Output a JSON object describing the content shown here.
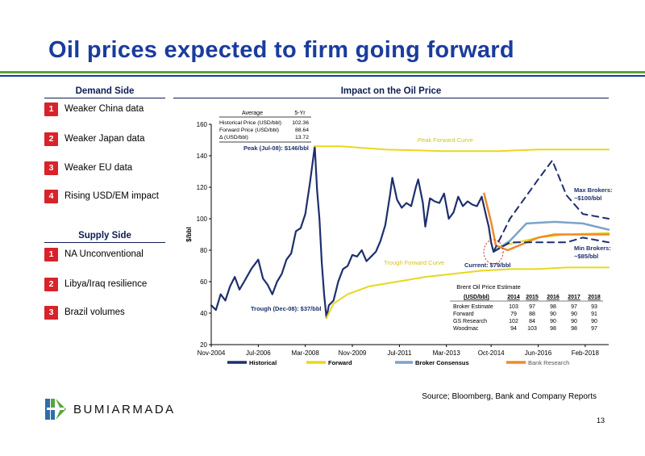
{
  "page": {
    "title": "Oil prices expected to firm going forward",
    "source": "Source; Bloomberg, Bank and Company Reports",
    "page_number": "13",
    "logo_text": "BUMIARMADA"
  },
  "demand": {
    "heading": "Demand Side",
    "items": [
      {
        "num": "1",
        "label": "Weaker China data"
      },
      {
        "num": "2",
        "label": "Weaker Japan data"
      },
      {
        "num": "3",
        "label": "Weaker EU data"
      },
      {
        "num": "4",
        "label": "Rising USD/EM impact"
      }
    ]
  },
  "supply": {
    "heading": "Supply Side",
    "items": [
      {
        "num": "1",
        "label": "NA Unconventional"
      },
      {
        "num": "2",
        "label": "Libya/Iraq resilience"
      },
      {
        "num": "3",
        "label": "Brazil volumes"
      }
    ]
  },
  "colors": {
    "title": "#1a3c9c",
    "historical": "#1d2f6e",
    "forward": "#e8d81e",
    "broker_consensus": "#7ba3c9",
    "bank_research": "#ef8a28",
    "max_min_brokers": "#1d2f6e",
    "badge": "#d8232a",
    "top_rule": "#5aa53c"
  },
  "chart_data": {
    "type": "line",
    "title": "Impact on the Oil Price",
    "ylabel": "$/bbl",
    "ylim": [
      20,
      160
    ],
    "yticks": [
      20,
      40,
      60,
      80,
      100,
      120,
      140,
      160
    ],
    "xlim": [
      "2004-11",
      "2018-12"
    ],
    "x_tick_labels": [
      "Nov-2004",
      "Jul-2006",
      "Mar-2008",
      "Nov-2009",
      "Jul-2011",
      "Mar-2013",
      "Oct-2014",
      "Jun-2016",
      "Feb-2018"
    ],
    "x_tick_dates": [
      "2004-11",
      "2006-07",
      "2008-03",
      "2009-11",
      "2011-07",
      "2013-03",
      "2014-10",
      "2016-06",
      "2018-02"
    ],
    "grid": false,
    "legend_position": "bottom",
    "series": [
      {
        "name": "Historical",
        "points": [
          [
            "2004-11",
            45
          ],
          [
            "2005-01",
            42
          ],
          [
            "2005-03",
            52
          ],
          [
            "2005-05",
            48
          ],
          [
            "2005-07",
            57
          ],
          [
            "2005-09",
            63
          ],
          [
            "2005-11",
            55
          ],
          [
            "2006-01",
            60
          ],
          [
            "2006-04",
            68
          ],
          [
            "2006-07",
            74
          ],
          [
            "2006-09",
            62
          ],
          [
            "2006-11",
            58
          ],
          [
            "2007-01",
            52
          ],
          [
            "2007-03",
            60
          ],
          [
            "2007-05",
            65
          ],
          [
            "2007-07",
            74
          ],
          [
            "2007-09",
            78
          ],
          [
            "2007-11",
            92
          ],
          [
            "2008-01",
            94
          ],
          [
            "2008-03",
            103
          ],
          [
            "2008-05",
            123
          ],
          [
            "2008-07",
            146
          ],
          [
            "2008-08",
            118
          ],
          [
            "2008-09",
            100
          ],
          [
            "2008-10",
            72
          ],
          [
            "2008-11",
            52
          ],
          [
            "2008-12",
            37
          ],
          [
            "2009-01",
            45
          ],
          [
            "2009-03",
            48
          ],
          [
            "2009-05",
            60
          ],
          [
            "2009-07",
            68
          ],
          [
            "2009-09",
            70
          ],
          [
            "2009-11",
            77
          ],
          [
            "2010-01",
            76
          ],
          [
            "2010-03",
            80
          ],
          [
            "2010-05",
            73
          ],
          [
            "2010-07",
            76
          ],
          [
            "2010-09",
            79
          ],
          [
            "2010-11",
            86
          ],
          [
            "2011-01",
            96
          ],
          [
            "2011-03",
            115
          ],
          [
            "2011-04",
            126
          ],
          [
            "2011-06",
            112
          ],
          [
            "2011-08",
            107
          ],
          [
            "2011-10",
            110
          ],
          [
            "2011-12",
            108
          ],
          [
            "2012-02",
            120
          ],
          [
            "2012-03",
            125
          ],
          [
            "2012-05",
            110
          ],
          [
            "2012-06",
            95
          ],
          [
            "2012-08",
            113
          ],
          [
            "2012-10",
            111
          ],
          [
            "2012-12",
            110
          ],
          [
            "2013-02",
            116
          ],
          [
            "2013-04",
            100
          ],
          [
            "2013-06",
            104
          ],
          [
            "2013-08",
            114
          ],
          [
            "2013-10",
            108
          ],
          [
            "2013-12",
            111
          ],
          [
            "2014-02",
            109
          ],
          [
            "2014-04",
            108
          ],
          [
            "2014-06",
            114
          ],
          [
            "2014-08",
            101
          ],
          [
            "2014-09",
            95
          ],
          [
            "2014-10",
            85
          ],
          [
            "2014-11",
            79
          ]
        ]
      },
      {
        "name": "Forward",
        "points": [
          [
            "2008-07",
            146
          ],
          [
            "2009-06",
            146
          ],
          [
            "2011-01",
            144
          ],
          [
            "2013-01",
            143
          ],
          [
            "2015-01",
            143
          ],
          [
            "2016-06",
            144
          ],
          [
            "2018-12",
            144
          ]
        ]
      },
      {
        "name": "Forward",
        "points": [
          [
            "2008-12",
            37
          ],
          [
            "2009-03",
            46
          ],
          [
            "2009-09",
            52
          ],
          [
            "2010-06",
            57
          ],
          [
            "2011-06",
            60
          ],
          [
            "2012-06",
            63
          ],
          [
            "2013-06",
            65
          ],
          [
            "2014-06",
            67
          ],
          [
            "2015-06",
            68
          ],
          [
            "2016-06",
            68
          ],
          [
            "2017-06",
            69
          ],
          [
            "2018-12",
            69
          ]
        ]
      },
      {
        "name": "Forward",
        "points": [
          [
            "2014-11",
            79
          ],
          [
            "2015-03",
            83
          ],
          [
            "2015-09",
            85
          ],
          [
            "2016-06",
            88
          ],
          [
            "2017-06",
            90
          ],
          [
            "2018-12",
            91
          ]
        ]
      },
      {
        "name": "Broker Consensus",
        "points": [
          [
            "2014-11",
            79
          ],
          [
            "2015-06",
            86
          ],
          [
            "2016-01",
            97
          ],
          [
            "2017-01",
            98
          ],
          [
            "2018-01",
            97
          ],
          [
            "2018-12",
            93
          ]
        ]
      },
      {
        "name": "Bank Research",
        "points": [
          [
            "2014-07",
            116
          ],
          [
            "2014-10",
            98
          ],
          [
            "2014-12",
            83
          ],
          [
            "2015-05",
            80
          ],
          [
            "2016-06",
            88
          ],
          [
            "2017-01",
            90
          ],
          [
            "2018-12",
            90
          ]
        ]
      },
      {
        "name": "Max Brokers",
        "dashed": true,
        "points": [
          [
            "2014-11",
            79
          ],
          [
            "2015-06",
            100
          ],
          [
            "2016-06",
            125
          ],
          [
            "2016-12",
            137
          ],
          [
            "2017-06",
            115
          ],
          [
            "2018-01",
            103
          ],
          [
            "2018-12",
            100
          ]
        ]
      },
      {
        "name": "Min Brokers",
        "dashed": true,
        "points": [
          [
            "2014-11",
            79
          ],
          [
            "2015-06",
            85
          ],
          [
            "2016-06",
            85
          ],
          [
            "2017-06",
            85
          ],
          [
            "2018-01",
            88
          ],
          [
            "2018-12",
            85
          ]
        ]
      }
    ],
    "legend": [
      {
        "name": "Historical",
        "key": "historical"
      },
      {
        "name": "Forward",
        "key": "forward"
      },
      {
        "name": "Broker Consensus",
        "key": "broker_consensus"
      },
      {
        "name": "Bank Research",
        "key": "bank_research"
      }
    ],
    "annotations": {
      "peak": "Peak (Jul-08): $146/bbl",
      "trough": "Trough (Dec-08): $37/bbl",
      "peak_forward": "Peak Forward Curve",
      "trough_forward": "Trough Forward Curve",
      "current": "Current: $79/bbl",
      "max_brokers_1": "Max Brokers:",
      "max_brokers_2": "~$100/bbl",
      "min_brokers_1": "Min Brokers:",
      "min_brokers_2": "~$85/bbl"
    },
    "average_table": {
      "headers": [
        "Average",
        "5-Yr"
      ],
      "rows": [
        [
          "Historical Price (USD/bbl)",
          "102.36"
        ],
        [
          "Forward Price (USD/bbl)",
          "88.64"
        ],
        [
          "Δ (USD/bbl)",
          "13.72"
        ]
      ]
    },
    "estimate_table": {
      "title": "Brent Oil Price Estimate",
      "headers": [
        "(USD/bbl)",
        "2014",
        "2015",
        "2016",
        "2017",
        "2018"
      ],
      "rows": [
        [
          "Broker Estimate",
          "103",
          "97",
          "98",
          "97",
          "93"
        ],
        [
          "Forward",
          "79",
          "88",
          "90",
          "90",
          "91"
        ],
        [
          "GS Research",
          "102",
          "84",
          "90",
          "90",
          "90"
        ],
        [
          "Woodmac",
          "94",
          "103",
          "98",
          "98",
          "97"
        ]
      ]
    }
  }
}
